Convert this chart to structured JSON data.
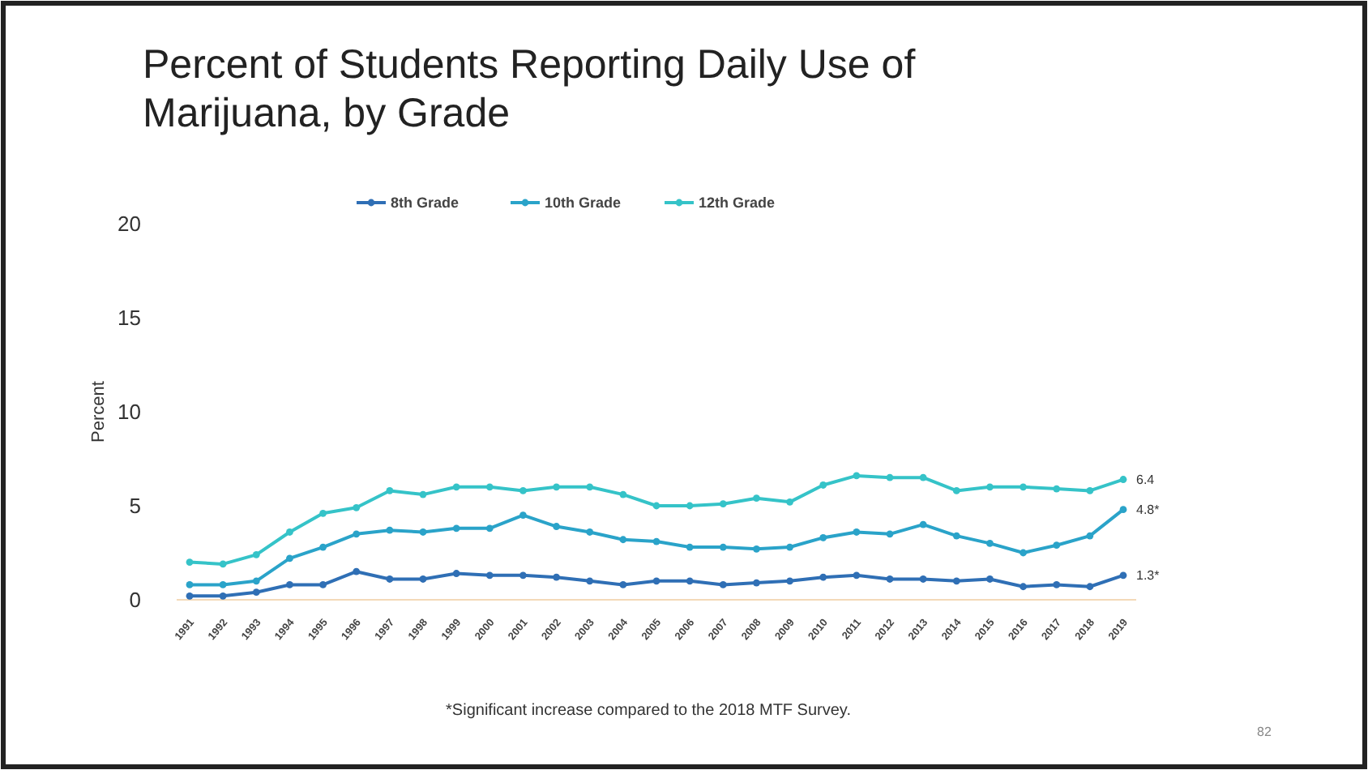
{
  "chart_data": {
    "type": "line",
    "title": "Percent of Students Reporting Daily Use of Marijuana, by Grade",
    "ylabel": "Percent",
    "categories": [
      "1991",
      "1992",
      "1993",
      "1994",
      "1995",
      "1996",
      "1997",
      "1998",
      "1999",
      "2000",
      "2001",
      "2002",
      "2003",
      "2004",
      "2005",
      "2006",
      "2007",
      "2008",
      "2009",
      "2010",
      "2011",
      "2012",
      "2013",
      "2014",
      "2015",
      "2016",
      "2017",
      "2018",
      "2019"
    ],
    "series": [
      {
        "name": "8th Grade",
        "color": "#2f6fb5",
        "values": [
          0.2,
          0.2,
          0.4,
          0.8,
          0.8,
          1.5,
          1.1,
          1.1,
          1.4,
          1.3,
          1.3,
          1.2,
          1.0,
          0.8,
          1.0,
          1.0,
          0.8,
          0.9,
          1.0,
          1.2,
          1.3,
          1.1,
          1.1,
          1.0,
          1.1,
          0.7,
          0.8,
          0.7,
          1.3
        ]
      },
      {
        "name": "10th Grade",
        "color": "#2aa3c9",
        "values": [
          0.8,
          0.8,
          1.0,
          2.2,
          2.8,
          3.5,
          3.7,
          3.6,
          3.8,
          3.8,
          4.5,
          3.9,
          3.6,
          3.2,
          3.1,
          2.8,
          2.8,
          2.7,
          2.8,
          3.3,
          3.6,
          3.5,
          4.0,
          3.4,
          3.0,
          2.5,
          2.9,
          3.4,
          4.8
        ]
      },
      {
        "name": "12th Grade",
        "color": "#35c3c8",
        "values": [
          2.0,
          1.9,
          2.4,
          3.6,
          4.6,
          4.9,
          5.8,
          5.6,
          6.0,
          6.0,
          5.8,
          6.0,
          6.0,
          5.6,
          5.0,
          5.0,
          5.1,
          5.4,
          5.2,
          6.1,
          6.6,
          6.5,
          6.5,
          5.8,
          6.0,
          6.0,
          5.9,
          5.8,
          6.4
        ]
      }
    ],
    "ylim": [
      0,
      20
    ],
    "yticks": [
      0,
      5,
      10,
      15,
      20
    ],
    "grid": false,
    "legend": "top",
    "marker": "circle",
    "line_style": "solid",
    "annotations": [
      {
        "text": "6.4",
        "x": "2019",
        "y": 6.4
      },
      {
        "text": "4.8*",
        "x": "2019",
        "y": 4.8
      },
      {
        "text": "1.3*",
        "x": "2019",
        "y": 1.3
      },
      "*Significant increase compared to the 2018 MTF Survey.",
      "82"
    ]
  }
}
